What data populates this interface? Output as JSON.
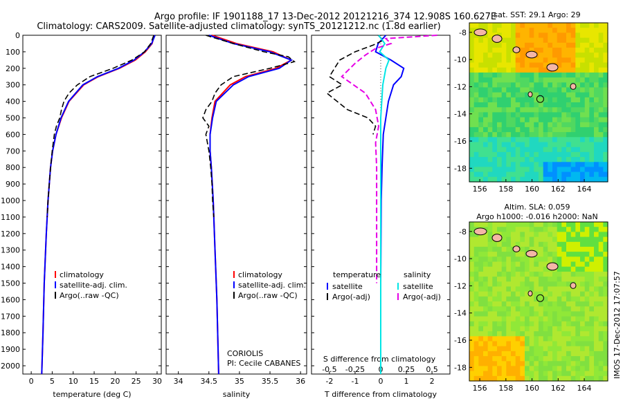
{
  "title_line1": "Argo profile: IF 1901188_17 13-Dec-2012 20121216_374 12.908S 160.627E",
  "title_line2": "Climatology: CARS2009. Satellite-adjusted climatology: synTS_20121212.nc (1.8d earlier)",
  "side_label": "IMOS 17-Dec-2012 17:07:57",
  "colors": {
    "climatology": "#ff0000",
    "satellite": "#0000ff",
    "argo": "#000000",
    "sat_diff": "#00e5e5",
    "argo_sal_diff": "#e600e6"
  },
  "chart_data": [
    {
      "type": "line",
      "id": "temperature",
      "xlabel": "temperature (deg C)",
      "xlim": [
        -2,
        31
      ],
      "ylim": [
        2050,
        0
      ],
      "xticks": [
        "0",
        "5",
        "10",
        "15",
        "20",
        "25",
        "30"
      ],
      "yticks": [
        "0",
        "100",
        "200",
        "300",
        "400",
        "500",
        "600",
        "700",
        "800",
        "900",
        "1000",
        "1100",
        "1200",
        "1300",
        "1400",
        "1500",
        "1600",
        "1700",
        "1800",
        "1900",
        "2000"
      ],
      "legend": [
        "climatology",
        "satellite-adj. clim.",
        "Argo(..raw -QC)"
      ],
      "series": [
        {
          "name": "climatology",
          "depth": [
            0,
            50,
            100,
            150,
            200,
            250,
            300,
            400,
            500,
            600,
            700,
            800,
            900,
            1000,
            1200,
            1500,
            1800,
            2050
          ],
          "values": [
            29.3,
            28.8,
            27.2,
            24.8,
            21.0,
            16.0,
            12.5,
            9.0,
            7.2,
            5.9,
            5.1,
            4.6,
            4.3,
            4.0,
            3.6,
            3.1,
            2.8,
            2.5
          ]
        },
        {
          "name": "satellite-adj. clim.",
          "depth": [
            0,
            50,
            100,
            150,
            200,
            250,
            300,
            400,
            500,
            600,
            700,
            800,
            900,
            1000,
            1200,
            1500,
            1800,
            2050
          ],
          "values": [
            29.5,
            28.7,
            27.0,
            24.5,
            20.8,
            15.8,
            12.3,
            8.9,
            7.1,
            5.9,
            5.1,
            4.6,
            4.3,
            4.0,
            3.6,
            3.1,
            2.8,
            2.5
          ]
        },
        {
          "name": "Argo(..raw -QC)",
          "depth": [
            0,
            50,
            100,
            150,
            200,
            250,
            300,
            350,
            400,
            450,
            500,
            550,
            600,
            700,
            800,
            900,
            1000,
            1100
          ],
          "values": [
            29.2,
            28.5,
            27.0,
            24.0,
            19.5,
            14.0,
            11.0,
            9.0,
            7.8,
            7.2,
            6.8,
            6.0,
            5.5,
            5.0,
            4.6,
            4.3,
            4.0,
            3.8
          ]
        }
      ]
    },
    {
      "type": "line",
      "id": "salinity",
      "xlabel": "salinity",
      "xlim": [
        33.8,
        36.1
      ],
      "ylim": [
        2050,
        0
      ],
      "xticks": [
        "34",
        "34.5",
        "35",
        "35.5",
        "36"
      ],
      "legend": [
        "climatology",
        "satellite-adj. clim.",
        "Argo(..raw -QC)"
      ],
      "annotation": [
        "CORIOLIS",
        "PI: Cecile CABANES"
      ],
      "series": [
        {
          "name": "climatology",
          "depth": [
            0,
            50,
            100,
            150,
            200,
            250,
            300,
            400,
            500,
            600,
            700,
            800,
            1000,
            1300,
            1600,
            2050
          ],
          "values": [
            34.55,
            34.95,
            35.55,
            35.85,
            35.6,
            35.1,
            34.85,
            34.6,
            34.55,
            34.52,
            34.52,
            34.54,
            34.57,
            34.6,
            34.63,
            34.66
          ]
        },
        {
          "name": "satellite-adj. clim.",
          "depth": [
            0,
            50,
            100,
            150,
            200,
            250,
            300,
            400,
            500,
            600,
            700,
            800,
            1000,
            1300,
            1600,
            2050
          ],
          "values": [
            34.5,
            34.9,
            35.5,
            35.85,
            35.65,
            35.15,
            34.9,
            34.62,
            34.56,
            34.52,
            34.52,
            34.54,
            34.57,
            34.6,
            34.63,
            34.66
          ]
        },
        {
          "name": "Argo(..raw -QC)",
          "depth": [
            0,
            50,
            100,
            130,
            160,
            200,
            250,
            300,
            350,
            400,
            450,
            500,
            550,
            600,
            700,
            800,
            900,
            1000,
            1100
          ],
          "values": [
            34.45,
            34.9,
            35.4,
            35.8,
            35.9,
            35.5,
            34.9,
            34.7,
            34.6,
            34.55,
            34.45,
            34.4,
            34.5,
            34.45,
            34.5,
            34.53,
            34.55,
            34.56,
            34.58
          ]
        }
      ]
    },
    {
      "type": "line",
      "id": "difference",
      "xlabel": "T difference from climatology",
      "xlabel_top": "S difference from climatology",
      "xlim": [
        -2.7,
        2.7
      ],
      "ylim": [
        2050,
        0
      ],
      "xticks": [
        "-2",
        "-1",
        "0",
        "1",
        "2"
      ],
      "xticks_sal": [
        "-0.5",
        "-0.25",
        "0",
        "0.25",
        "0.5"
      ],
      "legend_headers": [
        "temperature",
        "salinity"
      ],
      "legend": [
        "satellite",
        "Argo(-adj)",
        "satellite",
        "Argo(-adj)"
      ],
      "series": [
        {
          "name": "temperature satellite",
          "depth": [
            0,
            50,
            100,
            150,
            200,
            250,
            300,
            400,
            500,
            600,
            800,
            1000,
            1500,
            2000
          ],
          "values": [
            0.2,
            -0.1,
            -0.2,
            0.4,
            0.9,
            0.8,
            0.5,
            0.3,
            0.2,
            0.1,
            0.05,
            0.02,
            0.0,
            0.0
          ]
        },
        {
          "name": "temperature Argo(-adj)",
          "depth": [
            0,
            30,
            60,
            100,
            150,
            200,
            250,
            300,
            350,
            400,
            450,
            500,
            550,
            600
          ],
          "values": [
            -0.1,
            0.1,
            -0.3,
            -1.0,
            -1.6,
            -1.8,
            -2.0,
            -1.5,
            -2.1,
            -1.7,
            -1.3,
            -0.5,
            -0.2,
            -0.3
          ]
        },
        {
          "name": "salinity satellite",
          "depth": [
            0,
            50,
            100,
            150,
            200,
            300,
            500,
            800,
            1200,
            1600,
            2050
          ],
          "values": [
            -0.02,
            0.04,
            -0.01,
            0.08,
            0.05,
            0.02,
            0.0,
            0.0,
            0.0,
            0.0,
            0.0
          ]
        },
        {
          "name": "salinity Argo(-adj)",
          "depth": [
            0,
            20,
            50,
            80,
            120,
            170,
            250,
            350,
            450,
            550,
            650,
            800,
            1000,
            1200,
            1500
          ],
          "values": [
            0.55,
            0.05,
            0.1,
            -0.05,
            -0.15,
            -0.25,
            -0.38,
            -0.15,
            -0.05,
            -0.02,
            -0.05,
            -0.04,
            -0.04,
            -0.04,
            -0.04
          ]
        }
      ]
    },
    {
      "type": "heatmap",
      "id": "map-sst",
      "title": "sat. SST: 29.1 Argo: 29",
      "xticks": [
        "156",
        "158",
        "160",
        "162",
        "164"
      ],
      "yticks": [
        "-8",
        "-10",
        "-12",
        "-14",
        "-16",
        "-18"
      ],
      "xlim": [
        155.2,
        165.8
      ],
      "ylim": [
        -19,
        -7.3
      ]
    },
    {
      "type": "heatmap",
      "id": "map-sla",
      "title_line1": "Altim. SLA: 0.059",
      "title_line2": "Argo h1000: -0.016 h2000: NaN",
      "xticks": [
        "156",
        "158",
        "160",
        "162",
        "164"
      ],
      "yticks": [
        "-8",
        "-10",
        "-12",
        "-14",
        "-16",
        "-18"
      ],
      "xlim": [
        155.2,
        165.8
      ],
      "ylim": [
        -19,
        -7.3
      ]
    }
  ]
}
